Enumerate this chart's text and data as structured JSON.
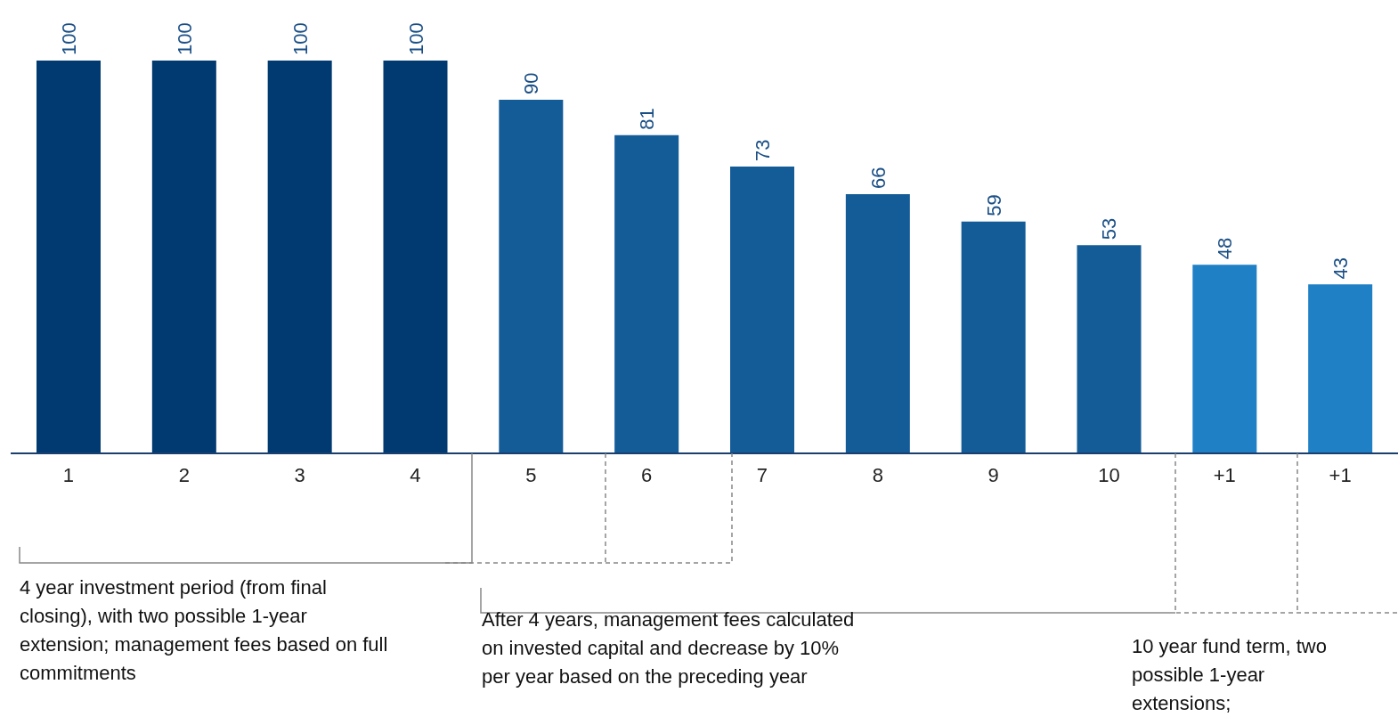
{
  "chart_data": {
    "type": "bar",
    "categories": [
      "1",
      "2",
      "3",
      "4",
      "5",
      "6",
      "7",
      "8",
      "9",
      "10",
      "+1",
      "+1"
    ],
    "values": [
      100,
      100,
      100,
      100,
      90,
      81,
      73,
      66,
      59,
      53,
      48,
      43
    ],
    "colors": [
      "#003a70",
      "#003a70",
      "#003a70",
      "#003a70",
      "#135c98",
      "#135c98",
      "#135c98",
      "#135c98",
      "#135c98",
      "#135c98",
      "#1f80c6",
      "#1f80c6"
    ],
    "data_labels": true,
    "annotations": [
      "4 year investment period (from final closing), with two possible 1-year extension; management fees based on full commitments",
      "After 4 years, management fees calculated on invested capital and decrease by 10% per year based on the preceding year",
      "10 year fund term, two possible 1-year extensions;"
    ]
  }
}
